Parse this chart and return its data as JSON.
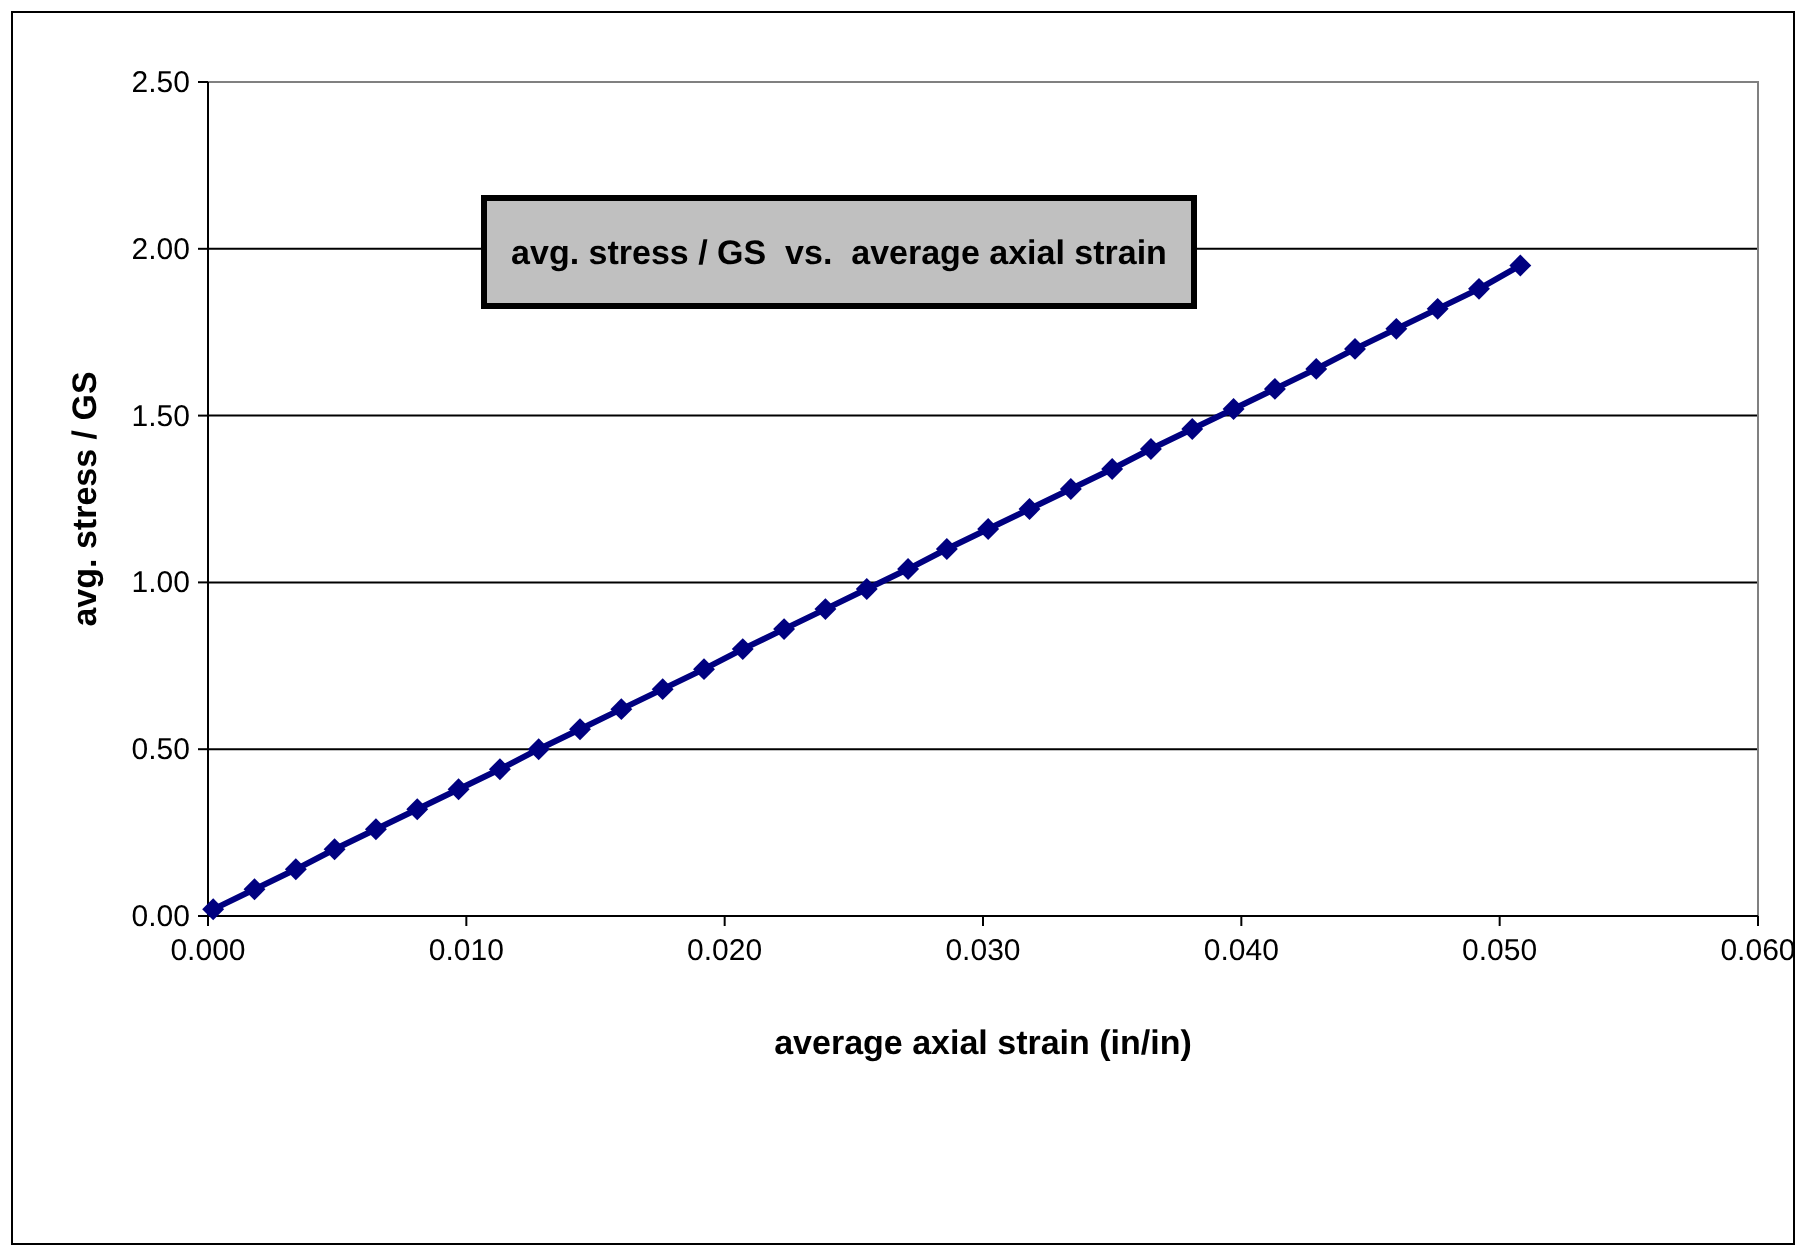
{
  "chart_data": {
    "type": "line",
    "title": "avg. stress / GS  vs.  average axial strain",
    "xlabel": "average axial strain (in/in)",
    "ylabel": "avg. stress / GS",
    "x": [
      0.0002,
      0.0018,
      0.0034,
      0.0049,
      0.0065,
      0.0081,
      0.0097,
      0.0113,
      0.0128,
      0.0144,
      0.016,
      0.0176,
      0.0192,
      0.0207,
      0.0223,
      0.0239,
      0.0255,
      0.0271,
      0.0286,
      0.0302,
      0.0318,
      0.0334,
      0.035,
      0.0365,
      0.0381,
      0.0397,
      0.0413,
      0.0429,
      0.0444,
      0.046,
      0.0476,
      0.0492,
      0.0508
    ],
    "series": [
      {
        "color": "#000080",
        "values": [
          0.02,
          0.08,
          0.14,
          0.2,
          0.26,
          0.32,
          0.38,
          0.44,
          0.5,
          0.56,
          0.62,
          0.68,
          0.74,
          0.8,
          0.86,
          0.92,
          0.98,
          1.04,
          1.1,
          1.16,
          1.22,
          1.28,
          1.34,
          1.4,
          1.46,
          1.52,
          1.58,
          1.64,
          1.7,
          1.76,
          1.82,
          1.88,
          1.95
        ]
      }
    ],
    "xlim": [
      0,
      0.06
    ],
    "xticks": [
      {
        "value": 0,
        "label": "0.000"
      },
      {
        "value": 0.01,
        "label": "0.010"
      },
      {
        "value": 0.02,
        "label": "0.020"
      },
      {
        "value": 0.03,
        "label": "0.030"
      },
      {
        "value": 0.04,
        "label": "0.040"
      },
      {
        "value": 0.05,
        "label": "0.050"
      },
      {
        "value": 0.06,
        "label": "0.060"
      }
    ],
    "ylim": [
      0,
      2.5
    ],
    "yticks": [
      {
        "value": 0,
        "label": "0.00"
      },
      {
        "value": 0.5,
        "label": "0.50"
      },
      {
        "value": 1,
        "label": "1.00"
      },
      {
        "value": 1.5,
        "label": "1.50"
      },
      {
        "value": 2,
        "label": "2.00"
      },
      {
        "value": 2.5,
        "label": "2.50"
      }
    ],
    "grid": "y",
    "marker": "diamond",
    "line_style": "solid"
  }
}
